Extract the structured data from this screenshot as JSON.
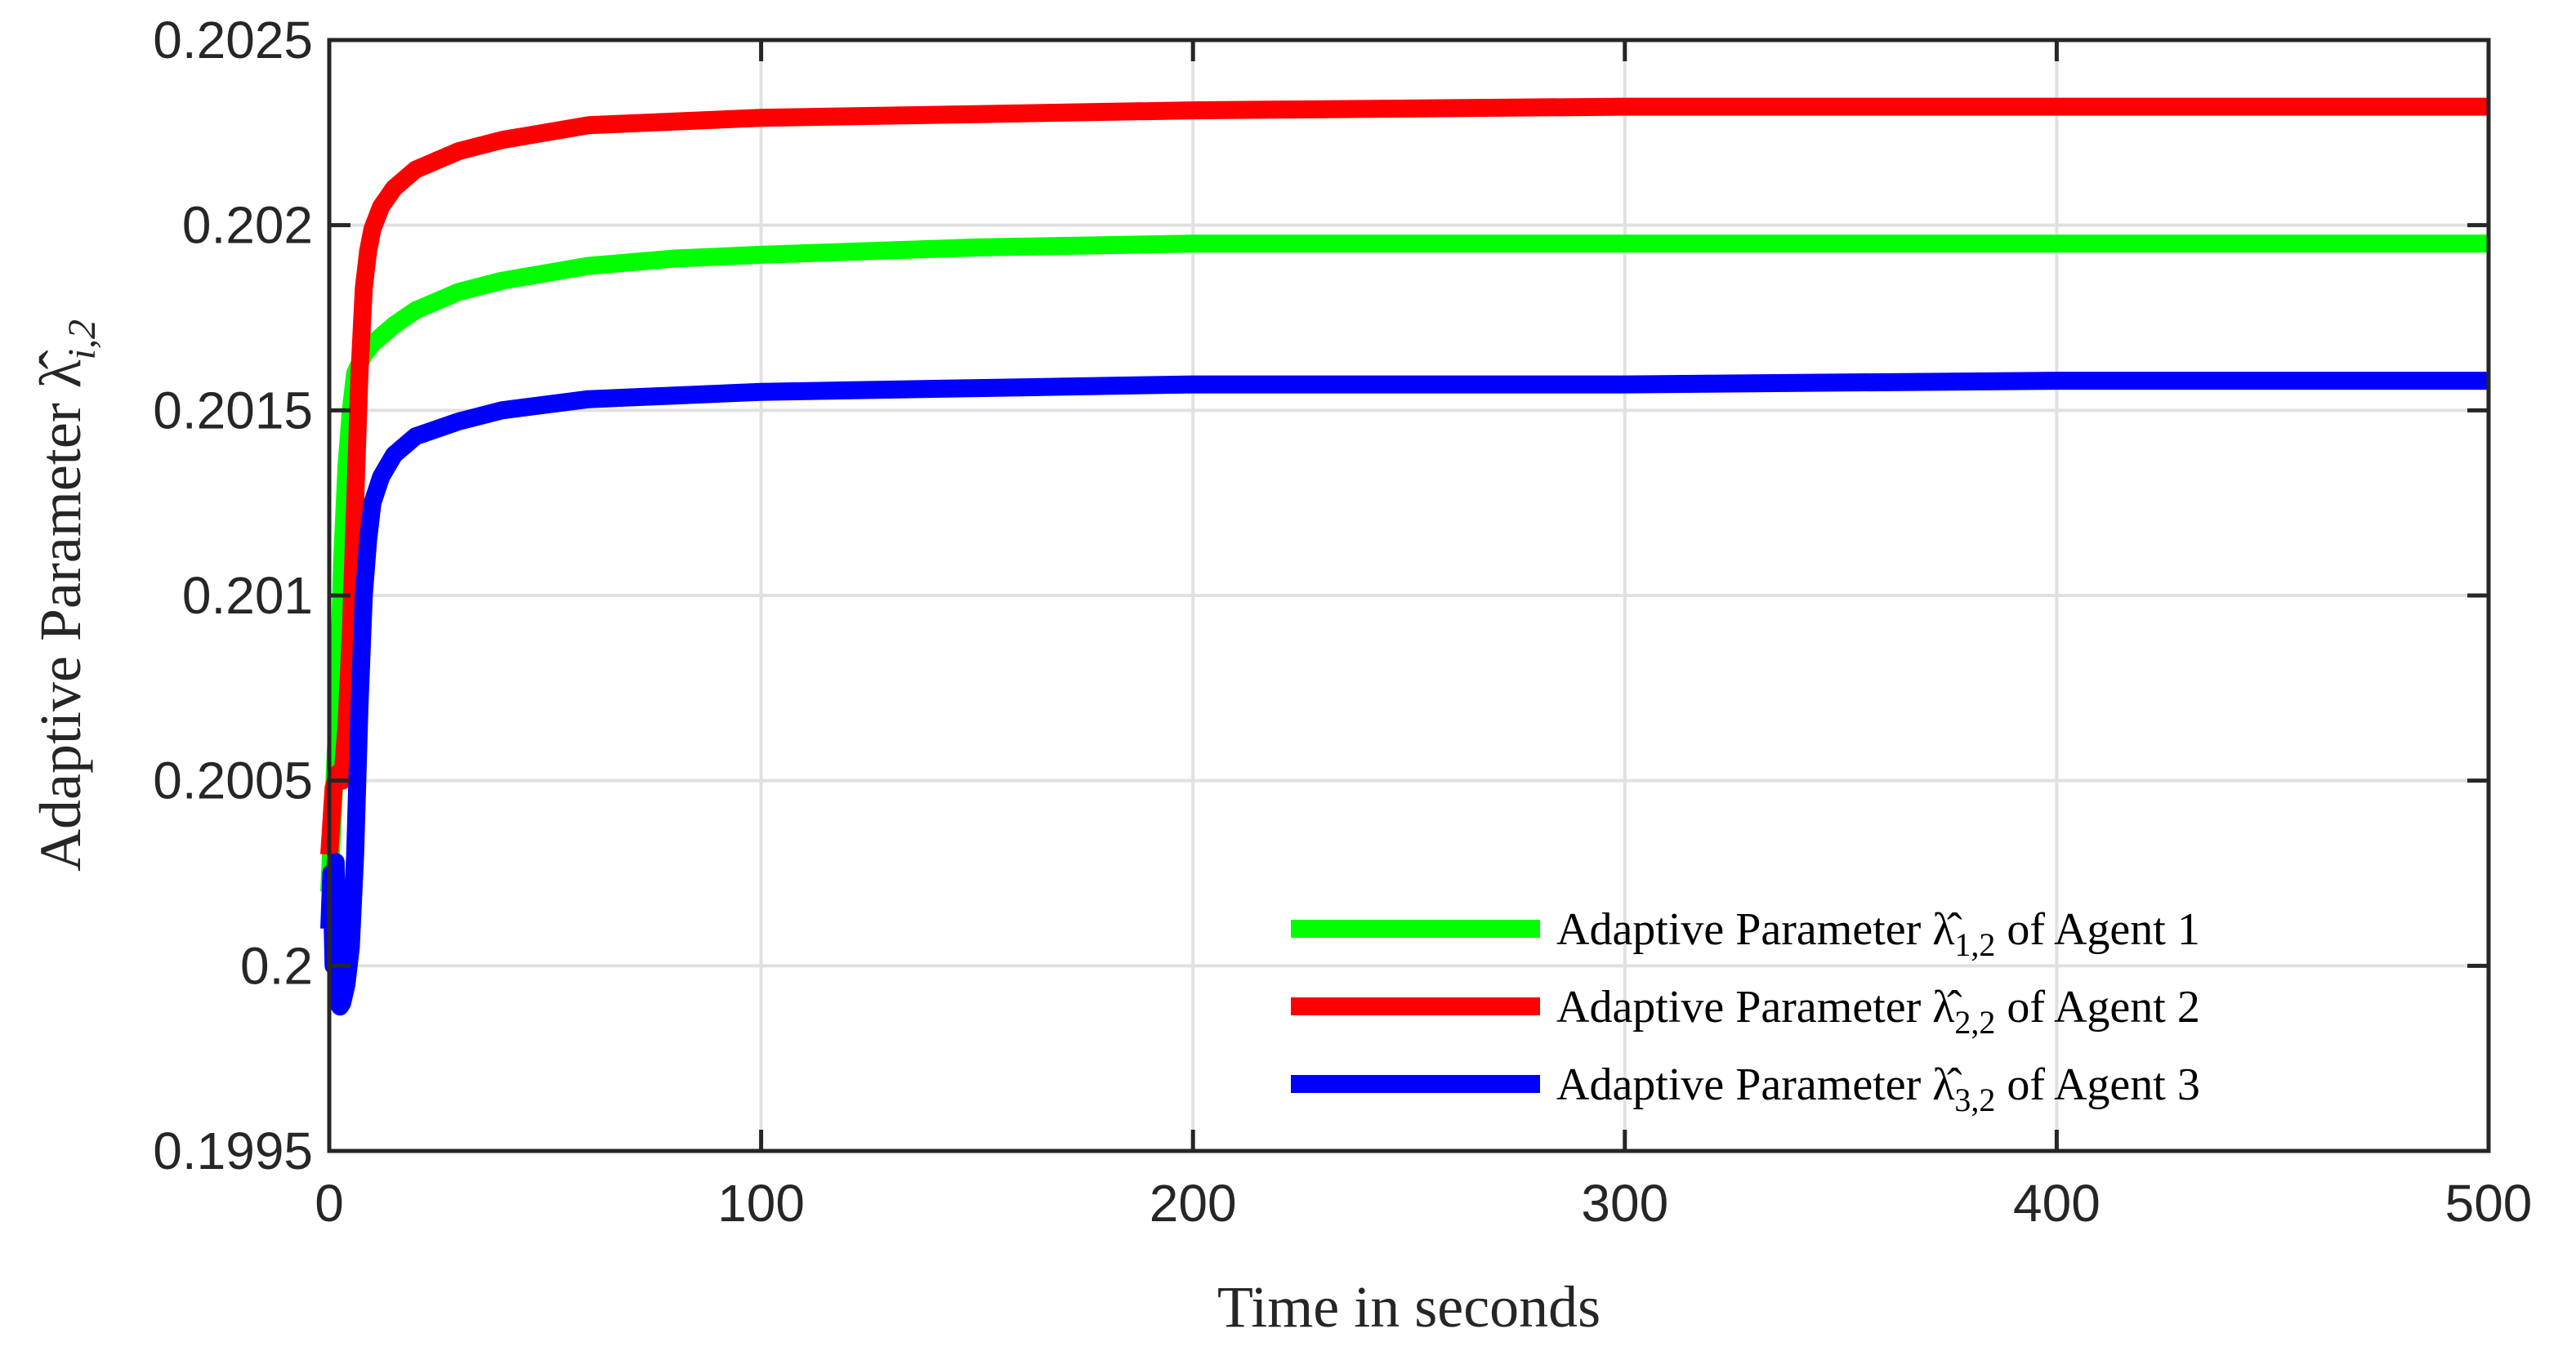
{
  "chart_data": {
    "type": "line",
    "title": "",
    "xlabel": "Time in seconds",
    "ylabel": "Adaptive Parameter λ̂",
    "ylabel_sub": "i,2",
    "xlim": [
      0,
      500
    ],
    "ylim": [
      0.1995,
      0.2025
    ],
    "xticks": [
      0,
      100,
      200,
      300,
      400,
      500
    ],
    "xtick_labels": [
      "0",
      "100",
      "200",
      "300",
      "400",
      "500"
    ],
    "yticks": [
      0.1995,
      0.2,
      0.2005,
      0.201,
      0.2015,
      0.202,
      0.2025
    ],
    "ytick_labels": [
      "0.1995",
      "0.2",
      "0.2005",
      "0.201",
      "0.2015",
      "0.202",
      "0.2025"
    ],
    "grid": true,
    "legend_position": "bottom-right",
    "series": [
      {
        "name": "Adaptive Parameter λ̂1,2 of Agent 1",
        "legend_prefix": "Adaptive Parameter λ̂",
        "legend_sub": "1,2",
        "legend_suffix": " of Agent 1",
        "color": "#00ff00",
        "x": [
          0,
          1,
          2,
          3,
          4,
          5,
          6,
          8,
          10,
          15,
          20,
          30,
          40,
          60,
          80,
          100,
          150,
          200,
          300,
          400,
          500
        ],
        "y": [
          0.2002,
          0.20045,
          0.2007,
          0.2011,
          0.20135,
          0.2015,
          0.2016,
          0.20165,
          0.20168,
          0.20173,
          0.20177,
          0.20182,
          0.20185,
          0.20189,
          0.20191,
          0.20192,
          0.20194,
          0.20195,
          0.20195,
          0.20195,
          0.20195
        ]
      },
      {
        "name": "Adaptive Parameter λ̂2,2 of Agent 2",
        "legend_prefix": "Adaptive Parameter λ̂",
        "legend_sub": "2,2",
        "legend_suffix": " of Agent 2",
        "color": "#ff0000",
        "x": [
          0,
          1,
          2,
          3,
          4,
          5,
          6,
          7,
          8,
          9,
          10,
          12,
          15,
          20,
          30,
          40,
          60,
          80,
          100,
          150,
          200,
          300,
          400,
          500
        ],
        "y": [
          0.2003,
          0.20048,
          0.20052,
          0.2005,
          0.20065,
          0.2009,
          0.20125,
          0.2016,
          0.20183,
          0.20193,
          0.20199,
          0.20205,
          0.2021,
          0.20215,
          0.2022,
          0.20223,
          0.20227,
          0.20228,
          0.20229,
          0.2023,
          0.20231,
          0.20232,
          0.20232,
          0.20232
        ]
      },
      {
        "name": "Adaptive Parameter λ̂3,2 of Agent 3",
        "legend_prefix": "Adaptive Parameter λ̂",
        "legend_sub": "3,2",
        "legend_suffix": " of Agent 3",
        "color": "#0000ff",
        "x": [
          0,
          0.5,
          1,
          1.5,
          2,
          2.5,
          3,
          4,
          5,
          6,
          7,
          8,
          9,
          10,
          12,
          15,
          20,
          30,
          40,
          60,
          80,
          100,
          150,
          200,
          300,
          400,
          500
        ],
        "y": [
          0.2001,
          0.20025,
          0.2,
          0.20028,
          0.1999,
          0.19989,
          0.1999,
          0.19995,
          0.20005,
          0.2003,
          0.2007,
          0.201,
          0.20115,
          0.20125,
          0.20132,
          0.20138,
          0.20143,
          0.20147,
          0.2015,
          0.20153,
          0.20154,
          0.20155,
          0.20156,
          0.20157,
          0.20157,
          0.20158,
          0.20158
        ]
      }
    ]
  }
}
